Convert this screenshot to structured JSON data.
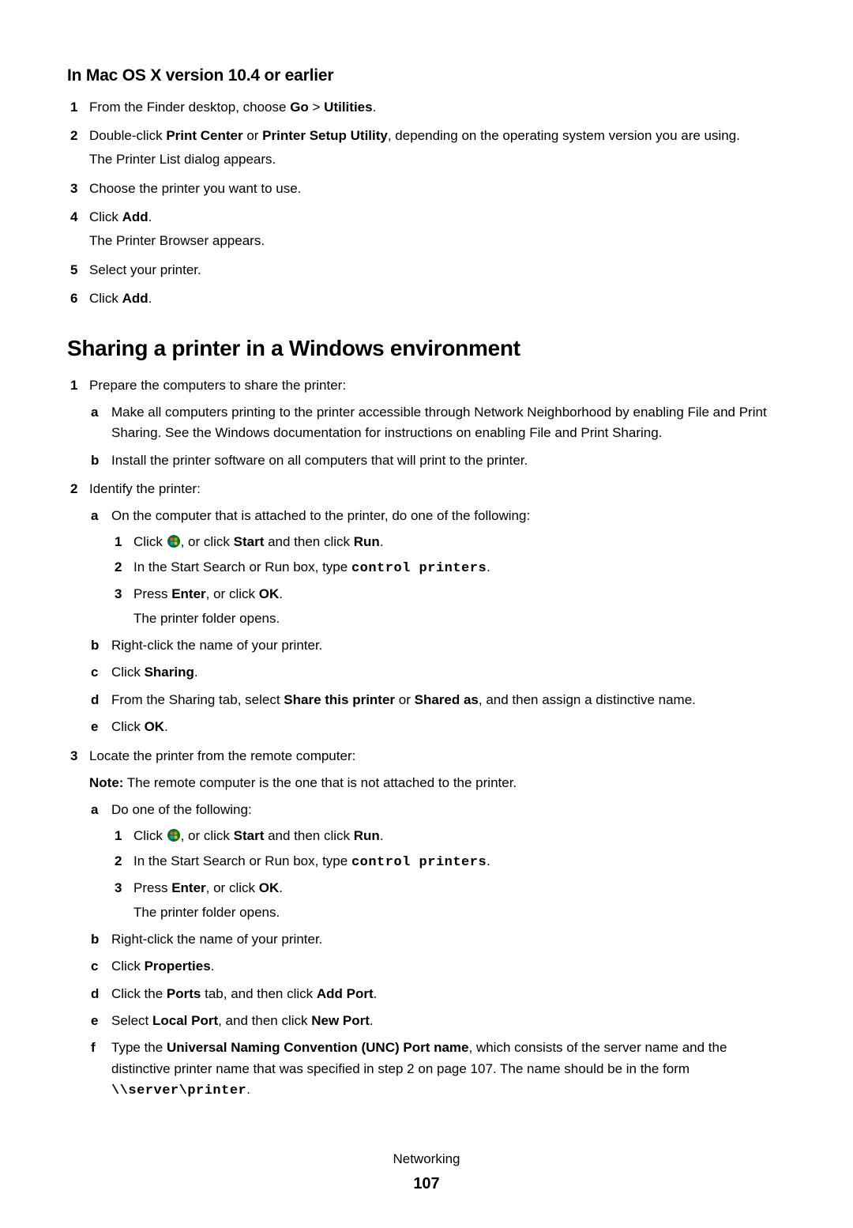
{
  "section1": {
    "title": "In Mac OS X version 10.4 or earlier",
    "steps": [
      {
        "n": "1",
        "html": "From the Finder desktop, choose <b>Go</b> > <b>Utilities</b>."
      },
      {
        "n": "2",
        "html": "Double-click <b>Print Center</b> or <b>Printer Setup Utility</b>, depending on the operating system version you are using.",
        "sub": "The Printer List dialog appears."
      },
      {
        "n": "3",
        "html": "Choose the printer you want to use."
      },
      {
        "n": "4",
        "html": "Click <b>Add</b>.",
        "sub": "The Printer Browser appears."
      },
      {
        "n": "5",
        "html": "Select your printer."
      },
      {
        "n": "6",
        "html": "Click <b>Add</b>."
      }
    ]
  },
  "section2": {
    "title": "Sharing a printer in a Windows environment",
    "steps": [
      {
        "n": "1",
        "html": "Prepare the computers to share the printer:",
        "alpha": [
          {
            "m": "a",
            "html": "Make all computers printing to the printer accessible through Network Neighborhood by enabling File and Print Sharing. See the Windows documentation for instructions on enabling File and Print Sharing."
          },
          {
            "m": "b",
            "html": "Install the printer software on all computers that will print to the printer."
          }
        ]
      },
      {
        "n": "2",
        "html": "Identify the printer:",
        "alpha": [
          {
            "m": "a",
            "html": "On the computer that is attached to the printer, do one of the following:",
            "inner": [
              {
                "n": "1",
                "html": "Click {START}, or click <b>Start</b> and then click <b>Run</b>."
              },
              {
                "n": "2",
                "html": "In the Start Search or Run box, type <span class=\"mono\">control printers</span>."
              },
              {
                "n": "3",
                "html": "Press <b>Enter</b>, or click <b>OK</b>.",
                "sub": "The printer folder opens."
              }
            ]
          },
          {
            "m": "b",
            "html": "Right-click the name of your printer."
          },
          {
            "m": "c",
            "html": "Click <b>Sharing</b>."
          },
          {
            "m": "d",
            "html": "From the Sharing tab, select <b>Share this printer</b> or <b>Shared as</b>, and then assign a distinctive name."
          },
          {
            "m": "e",
            "html": "Click <b>OK</b>."
          }
        ]
      },
      {
        "n": "3",
        "html": "Locate the printer from the remote computer:",
        "note": "<b>Note:</b> The remote computer is the one that is not attached to the printer.",
        "alpha": [
          {
            "m": "a",
            "html": "Do one of the following:",
            "inner": [
              {
                "n": "1",
                "html": "Click {START}, or click <b>Start</b> and then click <b>Run</b>."
              },
              {
                "n": "2",
                "html": "In the Start Search or Run box, type <span class=\"mono\">control printers</span>."
              },
              {
                "n": "3",
                "html": "Press <b>Enter</b>, or click <b>OK</b>.",
                "sub": "The printer folder opens."
              }
            ]
          },
          {
            "m": "b",
            "html": "Right-click the name of your printer."
          },
          {
            "m": "c",
            "html": "Click <b>Properties</b>."
          },
          {
            "m": "d",
            "html": "Click the <b>Ports</b> tab, and then click <b>Add Port</b>."
          },
          {
            "m": "e",
            "html": "Select <b>Local Port</b>, and then click <b>New Port</b>."
          },
          {
            "m": "f",
            "html": "Type the <b>Universal Naming Convention (UNC) Port name</b>, which consists of the server name and the distinctive printer name that was specified in step 2 on page 107. The name should be in the form <span class=\"mono\">\\\\server\\printer</span>."
          }
        ]
      }
    ]
  },
  "footer": {
    "section": "Networking",
    "page": "107"
  },
  "colors": {
    "text": "#000000",
    "bg": "#ffffff"
  }
}
